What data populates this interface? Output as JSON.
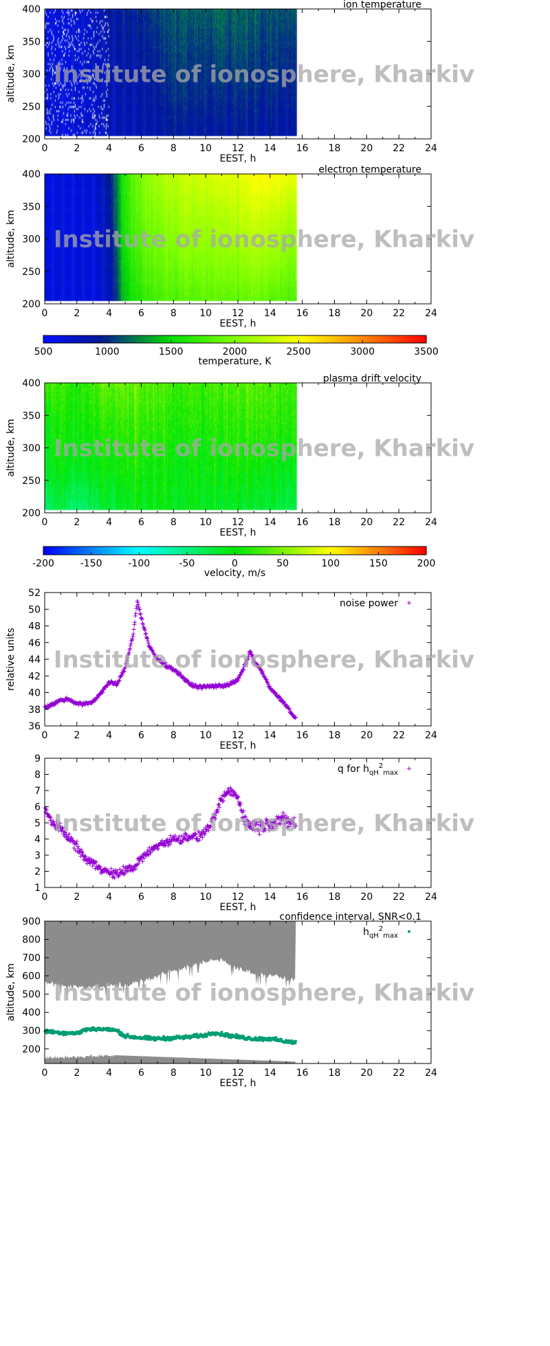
{
  "watermark": "Institute of ionosphere, Kharkiv",
  "chart_data": [
    {
      "type": "heatmap",
      "title": "ion temperature",
      "xlabel": "EEST, h",
      "ylabel": "altitude, km",
      "xlim": [
        0,
        24
      ],
      "ylim": [
        200,
        400
      ],
      "xticks": [
        "0",
        "2",
        "4",
        "6",
        "8",
        "10",
        "12",
        "14",
        "16",
        "18",
        "20",
        "22",
        "24"
      ],
      "yticks": [
        "200",
        "250",
        "300",
        "350",
        "400"
      ],
      "data_extent_h": [
        0,
        15.6
      ],
      "grid_hours": [
        0,
        1,
        2,
        3,
        4,
        5,
        6,
        7,
        8,
        9,
        10,
        11,
        12,
        13,
        14,
        15
      ],
      "grid_altitudes": [
        200,
        266,
        333,
        400
      ],
      "values_K": [
        [
          700,
          650,
          700,
          720,
          800,
          820,
          850,
          880,
          900,
          900,
          900,
          920,
          920,
          900,
          880,
          850
        ],
        [
          700,
          650,
          700,
          720,
          820,
          850,
          900,
          950,
          980,
          1000,
          1000,
          1000,
          1000,
          1000,
          980,
          950
        ],
        [
          650,
          650,
          700,
          750,
          850,
          900,
          950,
          1000,
          1050,
          1050,
          1050,
          1100,
          1100,
          1050,
          1050,
          1000
        ],
        [
          650,
          650,
          700,
          750,
          900,
          950,
          1000,
          1100,
          1100,
          1150,
          1150,
          1200,
          1150,
          1150,
          1100,
          1100
        ]
      ],
      "colorbar": "temperature"
    },
    {
      "type": "heatmap",
      "title": "electron temperature",
      "xlabel": "EEST, h",
      "ylabel": "altitude, km",
      "xlim": [
        0,
        24
      ],
      "ylim": [
        200,
        400
      ],
      "xticks": [
        "0",
        "2",
        "4",
        "6",
        "8",
        "10",
        "12",
        "14",
        "16",
        "18",
        "20",
        "22",
        "24"
      ],
      "yticks": [
        "200",
        "250",
        "300",
        "350",
        "400"
      ],
      "data_extent_h": [
        0,
        15.6
      ],
      "grid_hours": [
        0,
        1,
        2,
        3,
        4,
        5,
        6,
        7,
        8,
        9,
        10,
        11,
        12,
        13,
        14,
        15
      ],
      "grid_altitudes": [
        200,
        266,
        333,
        400
      ],
      "values_K": [
        [
          650,
          650,
          650,
          650,
          750,
          1450,
          1650,
          1750,
          1800,
          1800,
          1850,
          1850,
          1850,
          1850,
          1850,
          1800
        ],
        [
          650,
          650,
          650,
          650,
          800,
          1550,
          1800,
          1900,
          1950,
          2000,
          2000,
          2050,
          2050,
          2100,
          2100,
          2000
        ],
        [
          650,
          650,
          650,
          650,
          850,
          1650,
          1900,
          2000,
          2100,
          2150,
          2150,
          2200,
          2250,
          2300,
          2300,
          2200
        ],
        [
          650,
          650,
          650,
          700,
          900,
          1700,
          2000,
          2150,
          2250,
          2300,
          2350,
          2400,
          2400,
          2500,
          2550,
          2450
        ]
      ],
      "colorbar": "temperature"
    },
    {
      "type": "colorbar",
      "label": "temperature, K",
      "range": [
        500,
        3500
      ],
      "ticks": [
        "500",
        "1000",
        "1500",
        "2000",
        "2500",
        "3000",
        "3500"
      ]
    },
    {
      "type": "heatmap",
      "title": "plasma drift velocity",
      "xlabel": "EEST, h",
      "ylabel": "altitude, km",
      "xlim": [
        0,
        24
      ],
      "ylim": [
        200,
        400
      ],
      "xticks": [
        "0",
        "2",
        "4",
        "6",
        "8",
        "10",
        "12",
        "14",
        "16",
        "18",
        "20",
        "22",
        "24"
      ],
      "yticks": [
        "200",
        "250",
        "300",
        "350",
        "400"
      ],
      "data_extent_h": [
        0,
        15.6
      ],
      "grid_hours": [
        0,
        1,
        2,
        3,
        4,
        5,
        6,
        7,
        8,
        9,
        10,
        11,
        12,
        13,
        14,
        15
      ],
      "grid_altitudes": [
        200,
        266,
        333,
        400
      ],
      "values_ms": [
        [
          -40,
          -30,
          -40,
          -30,
          -20,
          -10,
          -10,
          -5,
          -10,
          -10,
          -10,
          -15,
          -15,
          -20,
          -20,
          -30
        ],
        [
          -10,
          -5,
          -5,
          0,
          0,
          5,
          5,
          0,
          0,
          -5,
          0,
          0,
          5,
          0,
          -5,
          -10
        ],
        [
          0,
          5,
          10,
          10,
          15,
          20,
          20,
          15,
          10,
          10,
          10,
          15,
          15,
          20,
          15,
          10
        ],
        [
          30,
          20,
          20,
          30,
          40,
          40,
          35,
          30,
          25,
          20,
          25,
          30,
          30,
          35,
          30,
          20
        ]
      ],
      "colorbar": "velocity"
    },
    {
      "type": "colorbar",
      "label": "velocity, m/s",
      "range": [
        -200,
        200
      ],
      "ticks": [
        "-200",
        "-150",
        "-100",
        "-50",
        "0",
        "50",
        "100",
        "150",
        "200"
      ]
    },
    {
      "type": "scatter",
      "legend": "noise power",
      "legend_position": "top-right",
      "xlabel": "EEST, h",
      "ylabel": "relative units",
      "xlim": [
        0,
        24
      ],
      "ylim": [
        36,
        52
      ],
      "xticks": [
        "0",
        "2",
        "4",
        "6",
        "8",
        "10",
        "12",
        "14",
        "16",
        "18",
        "20",
        "22",
        "24"
      ],
      "yticks": [
        "36",
        "38",
        "40",
        "42",
        "44",
        "46",
        "48",
        "50",
        "52"
      ],
      "color": "#9400d3",
      "series": [
        {
          "name": "noise power",
          "x": [
            0,
            0.5,
            1,
            1.5,
            2,
            2.5,
            3,
            3.5,
            4,
            4.5,
            5,
            5.5,
            5.75,
            6,
            6.5,
            7,
            7.5,
            8,
            8.5,
            9,
            9.5,
            10,
            10.5,
            11,
            11.5,
            12,
            12.5,
            12.75,
            13,
            13.5,
            14,
            14.5,
            15,
            15.5
          ],
          "y": [
            38.2,
            38.6,
            39.1,
            39.2,
            38.7,
            38.6,
            38.9,
            40.0,
            41.2,
            41.0,
            43.0,
            47.0,
            51.0,
            49.0,
            45.5,
            44.0,
            43.3,
            42.8,
            42.0,
            41.0,
            40.7,
            40.7,
            40.8,
            40.8,
            41.0,
            41.5,
            43.5,
            45.0,
            43.8,
            42.5,
            40.5,
            39.5,
            38.5,
            37.0
          ]
        }
      ]
    },
    {
      "type": "scatter",
      "legend": "q for h",
      "legend_sub": "qH",
      "legend_sup": "2",
      "legend_sub2": "max",
      "legend_position": "top-right",
      "xlabel": "EEST, h",
      "ylabel": "",
      "xlim": [
        0,
        24
      ],
      "ylim": [
        1,
        9
      ],
      "xticks": [
        "0",
        "2",
        "4",
        "6",
        "8",
        "10",
        "12",
        "14",
        "16",
        "18",
        "20",
        "22",
        "24"
      ],
      "yticks": [
        "1",
        "2",
        "3",
        "4",
        "5",
        "6",
        "7",
        "8",
        "9"
      ],
      "color": "#9400d3",
      "series": [
        {
          "name": "q for hqH2max",
          "x": [
            0,
            0.5,
            1,
            1.5,
            2,
            2.5,
            3,
            3.5,
            4,
            4.5,
            5,
            5.5,
            6,
            6.5,
            7,
            7.5,
            8,
            8.5,
            9,
            9.5,
            10,
            10.5,
            11,
            11.5,
            12,
            12.5,
            13,
            13.5,
            14,
            14.5,
            15,
            15.5
          ],
          "y": [
            5.8,
            5.0,
            4.6,
            4.1,
            3.5,
            2.8,
            2.5,
            2.2,
            1.9,
            1.8,
            2.1,
            2.2,
            2.8,
            3.2,
            3.6,
            3.8,
            4.0,
            4.0,
            4.2,
            4.1,
            4.5,
            5.2,
            6.5,
            7.0,
            6.6,
            5.0,
            4.8,
            4.8,
            5.0,
            5.2,
            5.1,
            5.0
          ]
        }
      ]
    },
    {
      "type": "scatter",
      "title": "confidence interval, SNR<0.1",
      "legend": "h",
      "legend_sub": "qH",
      "legend_sup": "2",
      "legend_sub2": "max",
      "legend_position": "top-right",
      "xlabel": "EEST, h",
      "ylabel": "altitude, km",
      "xlim": [
        0,
        24
      ],
      "ylim": [
        120,
        900
      ],
      "xticks": [
        "0",
        "2",
        "4",
        "6",
        "8",
        "10",
        "12",
        "14",
        "16",
        "18",
        "20",
        "22",
        "24"
      ],
      "yticks": [
        "200",
        "300",
        "400",
        "500",
        "600",
        "700",
        "800",
        "900"
      ],
      "color": "#009e73",
      "band_color": "#8c8c8c",
      "series": [
        {
          "name": "hqH2max",
          "x": [
            0,
            1,
            2,
            2.5,
            3,
            4,
            4.5,
            5,
            6,
            7,
            8,
            9,
            10,
            10.5,
            11,
            12,
            13,
            14,
            15,
            15.5
          ],
          "y": [
            295,
            290,
            285,
            305,
            310,
            305,
            300,
            270,
            260,
            255,
            260,
            265,
            275,
            290,
            280,
            265,
            255,
            255,
            240,
            235
          ]
        }
      ],
      "confidence_lower_bound": {
        "x": [
          0,
          1,
          2,
          3,
          4,
          5,
          6,
          7,
          8,
          9,
          10,
          11,
          12,
          13,
          14,
          15,
          15.6
        ],
        "y": [
          560,
          550,
          540,
          540,
          540,
          550,
          570,
          600,
          630,
          650,
          680,
          690,
          640,
          610,
          600,
          590,
          580
        ]
      },
      "low_band": {
        "x": [
          0,
          4.4,
          15.6
        ],
        "top": [
          150,
          165,
          130
        ]
      }
    }
  ]
}
